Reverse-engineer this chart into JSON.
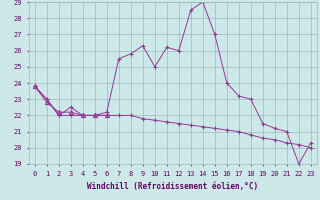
{
  "xlabel": "Windchill (Refroidissement éolien,°C)",
  "x": [
    0,
    1,
    2,
    3,
    4,
    5,
    6,
    7,
    8,
    9,
    10,
    11,
    12,
    13,
    14,
    15,
    16,
    17,
    18,
    19,
    20,
    21,
    22,
    23
  ],
  "line1": [
    23.8,
    23.0,
    22.0,
    22.5,
    22.0,
    22.0,
    22.2,
    25.5,
    25.8,
    26.3,
    25.0,
    26.2,
    26.0,
    28.5,
    29.0,
    27.0,
    24.0,
    23.2,
    23.0,
    21.5,
    21.2,
    21.0,
    19.0,
    20.3
  ],
  "line2": [
    23.8,
    23.0,
    22.0,
    22.0,
    22.0,
    22.0,
    22.0,
    22.0,
    22.0,
    21.8,
    21.7,
    21.6,
    21.5,
    21.4,
    21.3,
    21.2,
    21.1,
    21.0,
    20.8,
    20.6,
    20.5,
    20.3,
    20.2,
    20.0
  ],
  "line3": [
    23.8,
    22.8,
    22.2,
    22.2,
    22.0,
    22.0,
    22.0,
    22.0,
    22.0,
    22.0,
    22.0,
    22.0,
    22.0,
    21.8,
    21.7,
    21.5,
    21.3,
    21.2,
    21.0,
    20.8,
    20.6,
    20.4,
    20.2,
    20.0
  ],
  "ylim": [
    19,
    29
  ],
  "xlim": [
    -0.5,
    23.5
  ],
  "yticks": [
    19,
    20,
    21,
    22,
    23,
    24,
    25,
    26,
    27,
    28,
    29
  ],
  "xticks": [
    0,
    1,
    2,
    3,
    4,
    5,
    6,
    7,
    8,
    9,
    10,
    11,
    12,
    13,
    14,
    15,
    16,
    17,
    18,
    19,
    20,
    21,
    22,
    23
  ],
  "line_color": "#993399",
  "bg_color": "#cce8e8",
  "grid_color": "#99bbbb",
  "text_color": "#660066",
  "tick_fontsize": 5,
  "xlabel_fontsize": 5.5
}
